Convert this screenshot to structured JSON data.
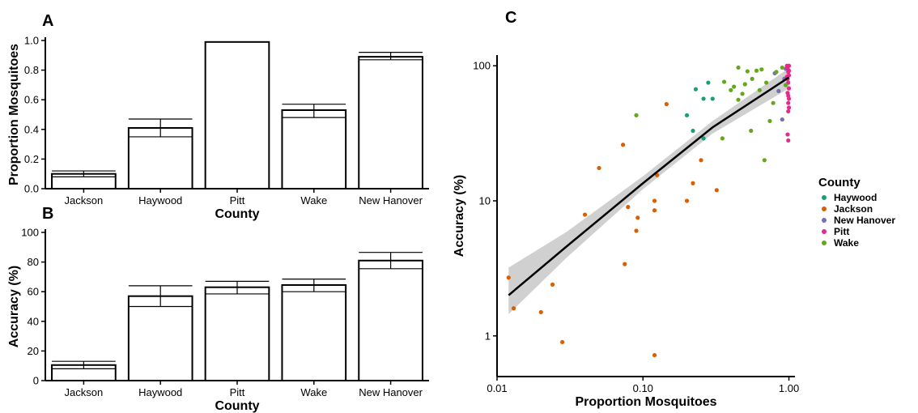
{
  "chart_data": [
    {
      "panel": "A",
      "type": "bar",
      "categories": [
        "Jackson",
        "Haywood",
        "Pitt",
        "Wake",
        "New Hanover"
      ],
      "values": [
        0.1,
        0.41,
        0.99,
        0.53,
        0.89
      ],
      "error_low": [
        0.08,
        0.35,
        0.99,
        0.48,
        0.87
      ],
      "error_high": [
        0.12,
        0.47,
        0.99,
        0.57,
        0.92
      ],
      "xlabel": "County",
      "ylabel": "Proportion Mosquitoes",
      "ylim": [
        0,
        1.0
      ],
      "yticks": [
        0.0,
        0.2,
        0.4,
        0.6,
        0.8,
        1.0
      ],
      "ytick_labels": [
        "0.0",
        "0.2",
        "0.4",
        "0.6",
        "0.8",
        "1.0"
      ]
    },
    {
      "panel": "B",
      "type": "bar",
      "categories": [
        "Jackson",
        "Haywood",
        "Pitt",
        "Wake",
        "New Hanover"
      ],
      "values": [
        10.5,
        57,
        63,
        64.5,
        81
      ],
      "error_low": [
        8,
        50,
        58.5,
        60,
        75.5
      ],
      "error_high": [
        13,
        64,
        67,
        68.5,
        86.5
      ],
      "xlabel": "County",
      "ylabel": "Accuracy (%)",
      "ylim": [
        0,
        100
      ],
      "yticks": [
        0,
        20,
        40,
        60,
        80,
        100
      ],
      "ytick_labels": [
        "0",
        "20",
        "40",
        "60",
        "80",
        "100"
      ]
    },
    {
      "panel": "C",
      "type": "scatter",
      "xscale": "log",
      "yscale": "log",
      "xlim": [
        0.01,
        1.1
      ],
      "ylim": [
        0.5,
        120
      ],
      "xticks": [
        0.01,
        0.1,
        1.0
      ],
      "xtick_labels": [
        "0.01",
        "0.10",
        "1.00"
      ],
      "yticks": [
        1,
        10,
        100
      ],
      "ytick_labels": [
        "1",
        "10",
        "100"
      ],
      "xlabel": "Proportion Mosquitoes",
      "ylabel": "Accuracy (%)",
      "legend_title": "County",
      "legend_position": "right",
      "trend": {
        "x": [
          0.012,
          0.03,
          0.1,
          0.3,
          1.0
        ],
        "y": [
          2.0,
          4.6,
          13.5,
          35,
          82
        ],
        "band_low": [
          1.45,
          3.8,
          12.2,
          31.5,
          68
        ],
        "band_high": [
          3.2,
          5.9,
          15.2,
          39,
          96
        ]
      },
      "series": [
        {
          "name": "Haywood",
          "color": "#1b9e77",
          "points": [
            [
              0.2,
              43
            ],
            [
              0.22,
              33
            ],
            [
              0.23,
              67
            ],
            [
              0.26,
              57
            ],
            [
              0.28,
              75
            ],
            [
              0.3,
              57
            ],
            [
              0.26,
              29
            ]
          ]
        },
        {
          "name": "Jackson",
          "color": "#d95f02",
          "points": [
            [
              0.012,
              2.7
            ],
            [
              0.013,
              1.6
            ],
            [
              0.02,
              1.5
            ],
            [
              0.024,
              2.4
            ],
            [
              0.028,
              0.9
            ],
            [
              0.04,
              7.9
            ],
            [
              0.05,
              17.5
            ],
            [
              0.073,
              26
            ],
            [
              0.075,
              3.4
            ],
            [
              0.079,
              9
            ],
            [
              0.09,
              6
            ],
            [
              0.092,
              7.5
            ],
            [
              0.12,
              8.5
            ],
            [
              0.12,
              0.72
            ],
            [
              0.12,
              10
            ],
            [
              0.125,
              15.5
            ],
            [
              0.145,
              52
            ],
            [
              0.2,
              10
            ],
            [
              0.22,
              13.5
            ],
            [
              0.25,
              20
            ],
            [
              0.32,
              12
            ]
          ]
        },
        {
          "name": "New Hanover",
          "color": "#7570b3",
          "points": [
            [
              0.8,
              88
            ],
            [
              0.85,
              65
            ],
            [
              0.9,
              40
            ],
            [
              0.93,
              80
            ],
            [
              0.95,
              95
            ]
          ]
        },
        {
          "name": "Pitt",
          "color": "#e7298a",
          "points": [
            [
              0.97,
              100
            ],
            [
              0.98,
              95
            ],
            [
              0.99,
              90
            ],
            [
              1.0,
              85
            ],
            [
              0.98,
              80
            ],
            [
              0.99,
              75
            ],
            [
              1.0,
              68
            ],
            [
              0.98,
              63
            ],
            [
              0.99,
              60
            ],
            [
              1.0,
              57
            ],
            [
              0.99,
              53
            ],
            [
              1.0,
              49
            ],
            [
              0.99,
              46
            ],
            [
              0.98,
              31
            ],
            [
              0.99,
              28
            ],
            [
              1.0,
              100
            ],
            [
              0.97,
              83
            ],
            [
              1.0,
              92
            ]
          ]
        },
        {
          "name": "Wake",
          "color": "#66a61e",
          "points": [
            [
              0.09,
              43
            ],
            [
              0.36,
              76
            ],
            [
              0.4,
              66
            ],
            [
              0.42,
              70
            ],
            [
              0.45,
              97
            ],
            [
              0.48,
              62
            ],
            [
              0.5,
              73
            ],
            [
              0.52,
              91
            ],
            [
              0.56,
              80
            ],
            [
              0.6,
              92
            ],
            [
              0.63,
              66
            ],
            [
              0.65,
              94
            ],
            [
              0.68,
              20
            ],
            [
              0.7,
              75
            ],
            [
              0.74,
              39
            ],
            [
              0.78,
              53
            ],
            [
              0.82,
              90
            ],
            [
              0.9,
              97
            ],
            [
              0.95,
              72
            ],
            [
              0.45,
              56
            ],
            [
              0.55,
              33
            ],
            [
              0.35,
              29
            ]
          ]
        }
      ]
    }
  ]
}
